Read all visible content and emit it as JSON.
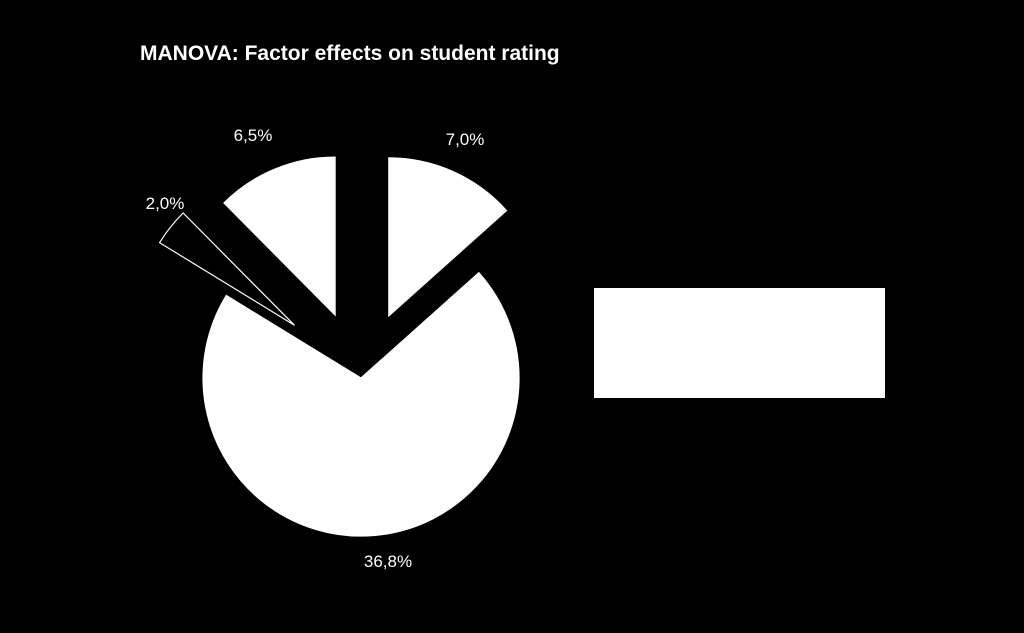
{
  "chart_data": {
    "type": "pie",
    "title": "MANOVA: Factor effects on student rating",
    "slices": [
      {
        "label": "7,0%",
        "value": 7.0,
        "color": "#ffffff",
        "exploded": true
      },
      {
        "label": "36,8%",
        "value": 36.8,
        "color": "#ffffff",
        "exploded": false
      },
      {
        "label": "2,0%",
        "value": 2.0,
        "color": "#000000",
        "exploded": true
      },
      {
        "label": "6,5%",
        "value": 6.5,
        "color": "#ffffff",
        "exploded": true
      }
    ],
    "legend": {
      "placement": "right",
      "entries": []
    }
  }
}
